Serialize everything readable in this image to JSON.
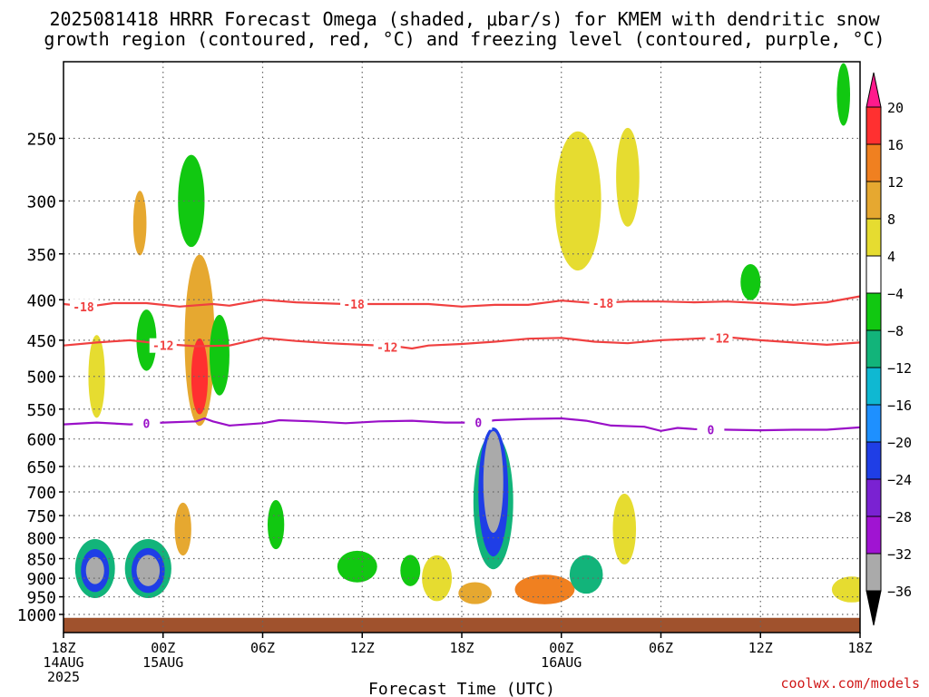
{
  "title_line1": "2025081418 HRRR Forecast Omega (shaded, μbar/s) for KMEM with dendritic snow",
  "title_line2": "growth region (contoured, red, °C) and freezing level (contoured, purple, °C)",
  "credit": "coolwx.com/models",
  "chart_data": {
    "type": "heatmap",
    "xlabel": "Forecast Time (UTC)",
    "ylabel": "",
    "x_range_hours": [
      0,
      48
    ],
    "x_ticks": [
      {
        "hour": 0,
        "lines": [
          "18Z",
          "14AUG",
          "2025"
        ]
      },
      {
        "hour": 6,
        "lines": [
          "00Z",
          "15AUG"
        ]
      },
      {
        "hour": 12,
        "lines": [
          "06Z"
        ]
      },
      {
        "hour": 18,
        "lines": [
          "12Z"
        ]
      },
      {
        "hour": 24,
        "lines": [
          "18Z"
        ]
      },
      {
        "hour": 30,
        "lines": [
          "00Z",
          "16AUG"
        ]
      },
      {
        "hour": 36,
        "lines": [
          "06Z"
        ]
      },
      {
        "hour": 42,
        "lines": [
          "12Z"
        ]
      },
      {
        "hour": 48,
        "lines": [
          "18Z"
        ]
      }
    ],
    "y_axis": "pressure (hPa), log scale, inverted",
    "y_range": [
      1000,
      200
    ],
    "y_ticks": [
      250,
      300,
      350,
      400,
      450,
      500,
      550,
      600,
      650,
      700,
      750,
      800,
      850,
      900,
      950,
      1000
    ],
    "grid": true,
    "surface_pressure": 1010,
    "colorbar": {
      "labels": [
        "20",
        "16",
        "12",
        "8",
        "4",
        "−4",
        "−8",
        "−12",
        "−16",
        "−20",
        "−24",
        "−28",
        "−32",
        "−36"
      ],
      "colors": [
        "#ff1a8c",
        "#ff3030",
        "#f08020",
        "#e6a830",
        "#e6dc30",
        "#ffffff",
        "#11c811",
        "#12b47a",
        "#0fb8d2",
        "#1e90ff",
        "#1f3ee6",
        "#7a22d2",
        "#a014d2",
        "#aaaaaa",
        "#000000"
      ]
    },
    "contours": [
      {
        "name": "-18",
        "color": "#f04040",
        "points": [
          [
            0,
            405
          ],
          [
            1.5,
            408
          ],
          [
            3,
            404
          ],
          [
            5,
            404
          ],
          [
            7,
            408
          ],
          [
            9,
            405
          ],
          [
            10,
            407
          ],
          [
            12,
            400
          ],
          [
            14,
            403
          ],
          [
            17,
            405
          ],
          [
            20,
            405
          ],
          [
            22,
            405
          ],
          [
            24,
            408
          ],
          [
            26,
            406
          ],
          [
            28,
            406
          ],
          [
            30,
            401
          ],
          [
            32,
            404
          ],
          [
            34,
            402
          ],
          [
            36,
            402
          ],
          [
            38,
            403
          ],
          [
            40,
            402
          ],
          [
            42,
            404
          ],
          [
            44,
            406
          ],
          [
            46,
            403
          ],
          [
            48,
            396
          ]
        ],
        "labels": [
          [
            1.2,
            408
          ],
          [
            17.5,
            405
          ],
          [
            32.5,
            404
          ]
        ]
      },
      {
        "name": "-12",
        "color": "#f04040",
        "points": [
          [
            0,
            457
          ],
          [
            2,
            453
          ],
          [
            4,
            450
          ],
          [
            6,
            455
          ],
          [
            8,
            458
          ],
          [
            10,
            457
          ],
          [
            12,
            447
          ],
          [
            14,
            451
          ],
          [
            16,
            454
          ],
          [
            18,
            456
          ],
          [
            20,
            458
          ],
          [
            21,
            461
          ],
          [
            22,
            457
          ],
          [
            24,
            455
          ],
          [
            26,
            452
          ],
          [
            28,
            448
          ],
          [
            30,
            447
          ],
          [
            32,
            452
          ],
          [
            34,
            454
          ],
          [
            36,
            450
          ],
          [
            38,
            448
          ],
          [
            40,
            446
          ],
          [
            42,
            450
          ],
          [
            44,
            453
          ],
          [
            46,
            456
          ],
          [
            48,
            453
          ]
        ],
        "labels": [
          [
            6,
            457
          ],
          [
            19.5,
            459
          ],
          [
            39.5,
            447
          ]
        ]
      },
      {
        "name": "0",
        "color": "#9a10c8",
        "points": [
          [
            0,
            575
          ],
          [
            2,
            572
          ],
          [
            4,
            575
          ],
          [
            6,
            572
          ],
          [
            8,
            570
          ],
          [
            8.5,
            565
          ],
          [
            9,
            570
          ],
          [
            10,
            577
          ],
          [
            12,
            573
          ],
          [
            13,
            568
          ],
          [
            15,
            570
          ],
          [
            17,
            573
          ],
          [
            19,
            570
          ],
          [
            21,
            569
          ],
          [
            23,
            572
          ],
          [
            25,
            572
          ],
          [
            26,
            568
          ],
          [
            28,
            566
          ],
          [
            30,
            565
          ],
          [
            31.5,
            569
          ],
          [
            33,
            577
          ],
          [
            35,
            579
          ],
          [
            36,
            586
          ],
          [
            37,
            581
          ],
          [
            38,
            583
          ],
          [
            40,
            584
          ],
          [
            42,
            585
          ],
          [
            44,
            584
          ],
          [
            46,
            584
          ],
          [
            48,
            580
          ]
        ],
        "labels": [
          [
            5,
            573
          ],
          [
            25,
            572
          ],
          [
            39,
            584
          ]
        ]
      }
    ],
    "blobs": [
      {
        "t": 1.9,
        "p": 875,
        "rt": 1.2,
        "rp": 150,
        "v": -12
      },
      {
        "t": 1.9,
        "p": 880,
        "rt": 0.85,
        "rp": 110,
        "v": -24
      },
      {
        "t": 1.9,
        "p": 880,
        "rt": 0.55,
        "rp": 70,
        "v": -36
      },
      {
        "t": 5.1,
        "p": 875,
        "rt": 1.4,
        "rp": 150,
        "v": -12
      },
      {
        "t": 5.1,
        "p": 880,
        "rt": 1.0,
        "rp": 115,
        "v": -24
      },
      {
        "t": 5.1,
        "p": 880,
        "rt": 0.7,
        "rp": 80,
        "v": -36
      },
      {
        "t": 8.2,
        "p": 450,
        "rt": 0.9,
        "rp": 220,
        "v": 8
      },
      {
        "t": 8.2,
        "p": 500,
        "rt": 0.5,
        "rp": 110,
        "v": 16
      },
      {
        "t": 7.2,
        "p": 780,
        "rt": 0.5,
        "rp": 120,
        "v": 8
      },
      {
        "t": 5.0,
        "p": 450,
        "rt": 0.6,
        "rp": 80,
        "v": -8
      },
      {
        "t": 4.6,
        "p": 320,
        "rt": 0.4,
        "rp": 60,
        "v": 8
      },
      {
        "t": 7.7,
        "p": 300,
        "rt": 0.8,
        "rp": 80,
        "v": -8
      },
      {
        "t": 9.4,
        "p": 470,
        "rt": 0.6,
        "rp": 110,
        "v": -8
      },
      {
        "t": 2.0,
        "p": 500,
        "rt": 0.5,
        "rp": 120,
        "v": 4
      },
      {
        "t": 12.8,
        "p": 770,
        "rt": 0.5,
        "rp": 110,
        "v": -8
      },
      {
        "t": 17.7,
        "p": 870,
        "rt": 1.2,
        "rp": 80,
        "v": -8
      },
      {
        "t": 20.9,
        "p": 880,
        "rt": 0.6,
        "rp": 80,
        "v": -8
      },
      {
        "t": 22.5,
        "p": 900,
        "rt": 0.9,
        "rp": 120,
        "v": 4
      },
      {
        "t": 25.9,
        "p": 720,
        "rt": 1.2,
        "rp": 280,
        "v": -12
      },
      {
        "t": 25.9,
        "p": 700,
        "rt": 0.9,
        "rp": 260,
        "v": -24
      },
      {
        "t": 25.9,
        "p": 680,
        "rt": 0.6,
        "rp": 200,
        "v": -36
      },
      {
        "t": 24.8,
        "p": 940,
        "rt": 1.0,
        "rp": 60,
        "v": 8
      },
      {
        "t": 29.0,
        "p": 930,
        "rt": 1.8,
        "rp": 80,
        "v": 12
      },
      {
        "t": 31.5,
        "p": 890,
        "rt": 1.0,
        "rp": 100,
        "v": -12
      },
      {
        "t": 33.8,
        "p": 780,
        "rt": 0.7,
        "rp": 160,
        "v": 4
      },
      {
        "t": 31.0,
        "p": 300,
        "rt": 1.4,
        "rp": 120,
        "v": 4
      },
      {
        "t": 34.0,
        "p": 280,
        "rt": 0.7,
        "rp": 80,
        "v": 4
      },
      {
        "t": 41.4,
        "p": 380,
        "rt": 0.6,
        "rp": 40,
        "v": -8
      },
      {
        "t": 47.5,
        "p": 930,
        "rt": 1.2,
        "rp": 70,
        "v": 4
      },
      {
        "t": 47.0,
        "p": 220,
        "rt": 0.4,
        "rp": 40,
        "v": -8
      }
    ]
  }
}
